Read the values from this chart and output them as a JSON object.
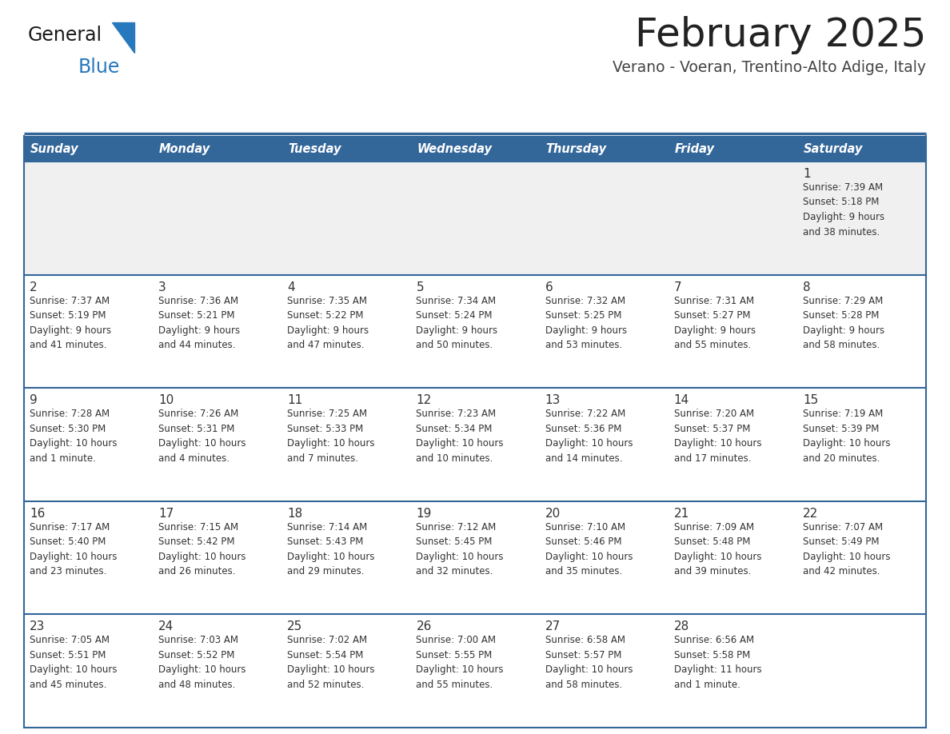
{
  "title": "February 2025",
  "subtitle": "Verano - Voeran, Trentino-Alto Adige, Italy",
  "days_of_week": [
    "Sunday",
    "Monday",
    "Tuesday",
    "Wednesday",
    "Thursday",
    "Friday",
    "Saturday"
  ],
  "header_bg": "#336699",
  "header_text": "#ffffff",
  "row_bg_week1": "#f0f0f0",
  "row_bg_other": "#ffffff",
  "separator_color": "#336699",
  "cell_text_color": "#333333",
  "title_color": "#222222",
  "subtitle_color": "#444444",
  "logo_general_color": "#1a1a1a",
  "logo_blue_color": "#2878be",
  "calendar_data": [
    [
      {
        "day": null,
        "info": ""
      },
      {
        "day": null,
        "info": ""
      },
      {
        "day": null,
        "info": ""
      },
      {
        "day": null,
        "info": ""
      },
      {
        "day": null,
        "info": ""
      },
      {
        "day": null,
        "info": ""
      },
      {
        "day": 1,
        "info": "Sunrise: 7:39 AM\nSunset: 5:18 PM\nDaylight: 9 hours\nand 38 minutes."
      }
    ],
    [
      {
        "day": 2,
        "info": "Sunrise: 7:37 AM\nSunset: 5:19 PM\nDaylight: 9 hours\nand 41 minutes."
      },
      {
        "day": 3,
        "info": "Sunrise: 7:36 AM\nSunset: 5:21 PM\nDaylight: 9 hours\nand 44 minutes."
      },
      {
        "day": 4,
        "info": "Sunrise: 7:35 AM\nSunset: 5:22 PM\nDaylight: 9 hours\nand 47 minutes."
      },
      {
        "day": 5,
        "info": "Sunrise: 7:34 AM\nSunset: 5:24 PM\nDaylight: 9 hours\nand 50 minutes."
      },
      {
        "day": 6,
        "info": "Sunrise: 7:32 AM\nSunset: 5:25 PM\nDaylight: 9 hours\nand 53 minutes."
      },
      {
        "day": 7,
        "info": "Sunrise: 7:31 AM\nSunset: 5:27 PM\nDaylight: 9 hours\nand 55 minutes."
      },
      {
        "day": 8,
        "info": "Sunrise: 7:29 AM\nSunset: 5:28 PM\nDaylight: 9 hours\nand 58 minutes."
      }
    ],
    [
      {
        "day": 9,
        "info": "Sunrise: 7:28 AM\nSunset: 5:30 PM\nDaylight: 10 hours\nand 1 minute."
      },
      {
        "day": 10,
        "info": "Sunrise: 7:26 AM\nSunset: 5:31 PM\nDaylight: 10 hours\nand 4 minutes."
      },
      {
        "day": 11,
        "info": "Sunrise: 7:25 AM\nSunset: 5:33 PM\nDaylight: 10 hours\nand 7 minutes."
      },
      {
        "day": 12,
        "info": "Sunrise: 7:23 AM\nSunset: 5:34 PM\nDaylight: 10 hours\nand 10 minutes."
      },
      {
        "day": 13,
        "info": "Sunrise: 7:22 AM\nSunset: 5:36 PM\nDaylight: 10 hours\nand 14 minutes."
      },
      {
        "day": 14,
        "info": "Sunrise: 7:20 AM\nSunset: 5:37 PM\nDaylight: 10 hours\nand 17 minutes."
      },
      {
        "day": 15,
        "info": "Sunrise: 7:19 AM\nSunset: 5:39 PM\nDaylight: 10 hours\nand 20 minutes."
      }
    ],
    [
      {
        "day": 16,
        "info": "Sunrise: 7:17 AM\nSunset: 5:40 PM\nDaylight: 10 hours\nand 23 minutes."
      },
      {
        "day": 17,
        "info": "Sunrise: 7:15 AM\nSunset: 5:42 PM\nDaylight: 10 hours\nand 26 minutes."
      },
      {
        "day": 18,
        "info": "Sunrise: 7:14 AM\nSunset: 5:43 PM\nDaylight: 10 hours\nand 29 minutes."
      },
      {
        "day": 19,
        "info": "Sunrise: 7:12 AM\nSunset: 5:45 PM\nDaylight: 10 hours\nand 32 minutes."
      },
      {
        "day": 20,
        "info": "Sunrise: 7:10 AM\nSunset: 5:46 PM\nDaylight: 10 hours\nand 35 minutes."
      },
      {
        "day": 21,
        "info": "Sunrise: 7:09 AM\nSunset: 5:48 PM\nDaylight: 10 hours\nand 39 minutes."
      },
      {
        "day": 22,
        "info": "Sunrise: 7:07 AM\nSunset: 5:49 PM\nDaylight: 10 hours\nand 42 minutes."
      }
    ],
    [
      {
        "day": 23,
        "info": "Sunrise: 7:05 AM\nSunset: 5:51 PM\nDaylight: 10 hours\nand 45 minutes."
      },
      {
        "day": 24,
        "info": "Sunrise: 7:03 AM\nSunset: 5:52 PM\nDaylight: 10 hours\nand 48 minutes."
      },
      {
        "day": 25,
        "info": "Sunrise: 7:02 AM\nSunset: 5:54 PM\nDaylight: 10 hours\nand 52 minutes."
      },
      {
        "day": 26,
        "info": "Sunrise: 7:00 AM\nSunset: 5:55 PM\nDaylight: 10 hours\nand 55 minutes."
      },
      {
        "day": 27,
        "info": "Sunrise: 6:58 AM\nSunset: 5:57 PM\nDaylight: 10 hours\nand 58 minutes."
      },
      {
        "day": 28,
        "info": "Sunrise: 6:56 AM\nSunset: 5:58 PM\nDaylight: 11 hours\nand 1 minute."
      },
      {
        "day": null,
        "info": ""
      }
    ]
  ]
}
